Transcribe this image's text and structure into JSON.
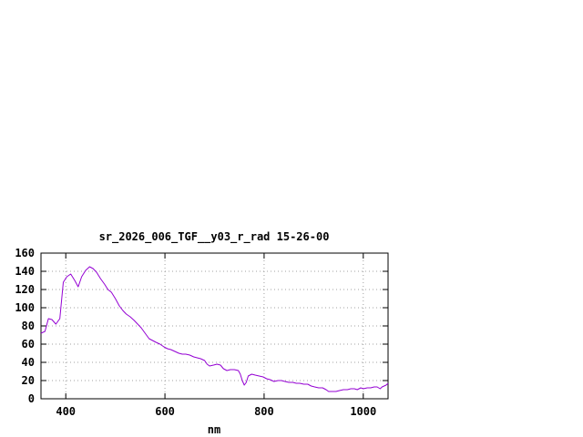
{
  "chart_data": {
    "type": "line",
    "title": "sr_2026_006_TGF__y03_r_rad 15-26-00",
    "xlabel": "nm",
    "ylabel": "",
    "xlim": [
      350,
      1050
    ],
    "ylim": [
      0,
      160
    ],
    "xticks": [
      400,
      600,
      800,
      1000
    ],
    "yticks": [
      0,
      20,
      40,
      60,
      80,
      100,
      120,
      140,
      160
    ],
    "grid": true,
    "legend": "none",
    "series": [
      {
        "color": "#9400d3",
        "points": [
          [
            350,
            72
          ],
          [
            358,
            74
          ],
          [
            365,
            88
          ],
          [
            372,
            87
          ],
          [
            380,
            82
          ],
          [
            388,
            88
          ],
          [
            395,
            128
          ],
          [
            402,
            134
          ],
          [
            410,
            137
          ],
          [
            418,
            130
          ],
          [
            425,
            123
          ],
          [
            432,
            134
          ],
          [
            440,
            141
          ],
          [
            448,
            145
          ],
          [
            455,
            143
          ],
          [
            462,
            139
          ],
          [
            470,
            132
          ],
          [
            478,
            126
          ],
          [
            485,
            120
          ],
          [
            492,
            117
          ],
          [
            500,
            110
          ],
          [
            508,
            102
          ],
          [
            515,
            97
          ],
          [
            522,
            93
          ],
          [
            530,
            90
          ],
          [
            538,
            86
          ],
          [
            545,
            82
          ],
          [
            552,
            78
          ],
          [
            560,
            72
          ],
          [
            568,
            66
          ],
          [
            575,
            64
          ],
          [
            582,
            62
          ],
          [
            590,
            60
          ],
          [
            598,
            57
          ],
          [
            605,
            55
          ],
          [
            612,
            54
          ],
          [
            620,
            52
          ],
          [
            628,
            50
          ],
          [
            635,
            49
          ],
          [
            642,
            49
          ],
          [
            650,
            48
          ],
          [
            658,
            46
          ],
          [
            665,
            45
          ],
          [
            672,
            44
          ],
          [
            680,
            42
          ],
          [
            685,
            38
          ],
          [
            690,
            36
          ],
          [
            698,
            37
          ],
          [
            705,
            38
          ],
          [
            712,
            37
          ],
          [
            718,
            33
          ],
          [
            725,
            31
          ],
          [
            732,
            32
          ],
          [
            740,
            32
          ],
          [
            748,
            31
          ],
          [
            752,
            27
          ],
          [
            756,
            20
          ],
          [
            760,
            15
          ],
          [
            764,
            18
          ],
          [
            768,
            25
          ],
          [
            775,
            27
          ],
          [
            782,
            26
          ],
          [
            790,
            25
          ],
          [
            798,
            24
          ],
          [
            805,
            22
          ],
          [
            812,
            21
          ],
          [
            820,
            19
          ],
          [
            828,
            20
          ],
          [
            835,
            20
          ],
          [
            842,
            19
          ],
          [
            850,
            18
          ],
          [
            858,
            18
          ],
          [
            865,
            17
          ],
          [
            872,
            17
          ],
          [
            880,
            16
          ],
          [
            888,
            16
          ],
          [
            895,
            14
          ],
          [
            902,
            13
          ],
          [
            910,
            12
          ],
          [
            918,
            12
          ],
          [
            925,
            10
          ],
          [
            930,
            8
          ],
          [
            938,
            8
          ],
          [
            945,
            8
          ],
          [
            952,
            9
          ],
          [
            960,
            10
          ],
          [
            968,
            10
          ],
          [
            975,
            11
          ],
          [
            982,
            11
          ],
          [
            988,
            10
          ],
          [
            995,
            12
          ],
          [
            1000,
            11
          ],
          [
            1008,
            12
          ],
          [
            1015,
            12
          ],
          [
            1022,
            13
          ],
          [
            1028,
            13
          ],
          [
            1034,
            11
          ],
          [
            1038,
            13
          ],
          [
            1042,
            14
          ],
          [
            1046,
            15
          ],
          [
            1050,
            17
          ]
        ]
      }
    ]
  }
}
